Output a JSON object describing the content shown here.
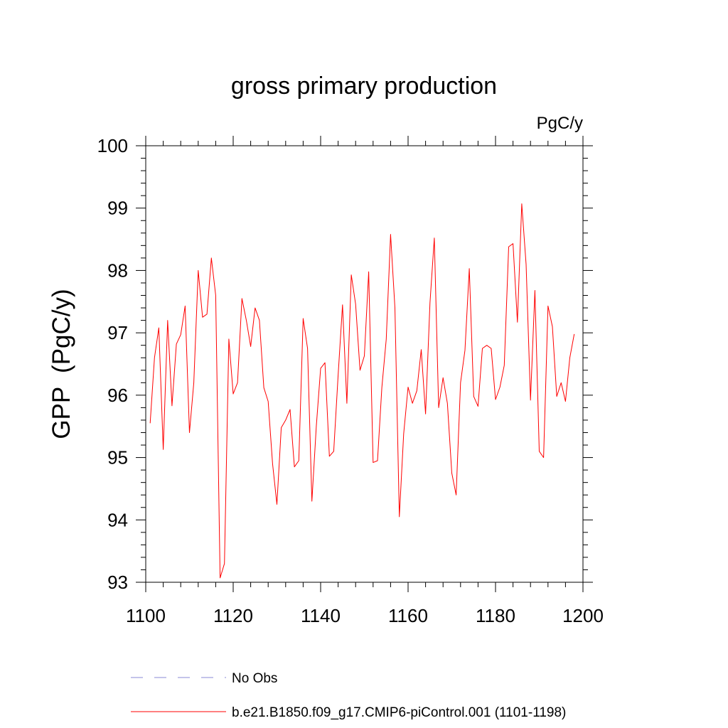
{
  "chart_data": {
    "type": "line",
    "title": "gross primary production",
    "units_label": "PgC/y",
    "ylabel": "GPP  (PgC/y)",
    "xlabel": "",
    "xlim": [
      1100,
      1200
    ],
    "ylim": [
      93,
      100
    ],
    "x_ticks": [
      1100,
      1120,
      1140,
      1160,
      1180,
      1200
    ],
    "y_ticks": [
      93,
      94,
      95,
      96,
      97,
      98,
      99,
      100
    ],
    "grid": false,
    "legend_placement": "bottom",
    "legend": [
      {
        "name": "No Obs",
        "style": "dashed",
        "color": "#8a8ad6"
      },
      {
        "name": "b.e21.B1850.f09_g17.CMIP6-piControl.001 (1101-1198)",
        "style": "solid",
        "color": "#ff0000"
      }
    ],
    "series": [
      {
        "name": "b.e21.B1850.f09_g17.CMIP6-piControl.001 (1101-1198)",
        "color": "#ff0000",
        "x_start": 1101,
        "x_step": 1,
        "values": [
          95.55,
          96.6,
          97.08,
          95.13,
          97.2,
          95.83,
          96.82,
          96.97,
          97.43,
          95.4,
          96.2,
          98.0,
          97.25,
          97.3,
          98.2,
          97.6,
          93.07,
          93.3,
          96.9,
          96.02,
          96.2,
          97.55,
          97.2,
          96.78,
          97.4,
          97.2,
          96.12,
          95.9,
          94.9,
          94.25,
          95.48,
          95.6,
          95.77,
          94.85,
          94.95,
          97.23,
          96.75,
          94.3,
          95.5,
          96.43,
          96.52,
          95.02,
          95.1,
          96.32,
          97.45,
          95.87,
          97.93,
          97.46,
          96.4,
          96.63,
          97.98,
          94.92,
          94.95,
          96.12,
          96.9,
          98.58,
          97.4,
          94.05,
          95.38,
          96.13,
          95.87,
          96.07,
          96.73,
          95.7,
          97.48,
          98.52,
          95.8,
          96.28,
          95.87,
          94.75,
          94.4,
          96.2,
          96.72,
          98.03,
          95.98,
          95.82,
          96.75,
          96.8,
          96.75,
          95.93,
          96.13,
          96.48,
          98.38,
          98.43,
          97.17,
          99.07,
          98.1,
          95.92,
          97.68,
          95.1,
          95.0,
          97.43,
          97.1,
          95.98,
          96.2,
          95.9,
          96.6,
          96.98
        ]
      }
    ]
  }
}
